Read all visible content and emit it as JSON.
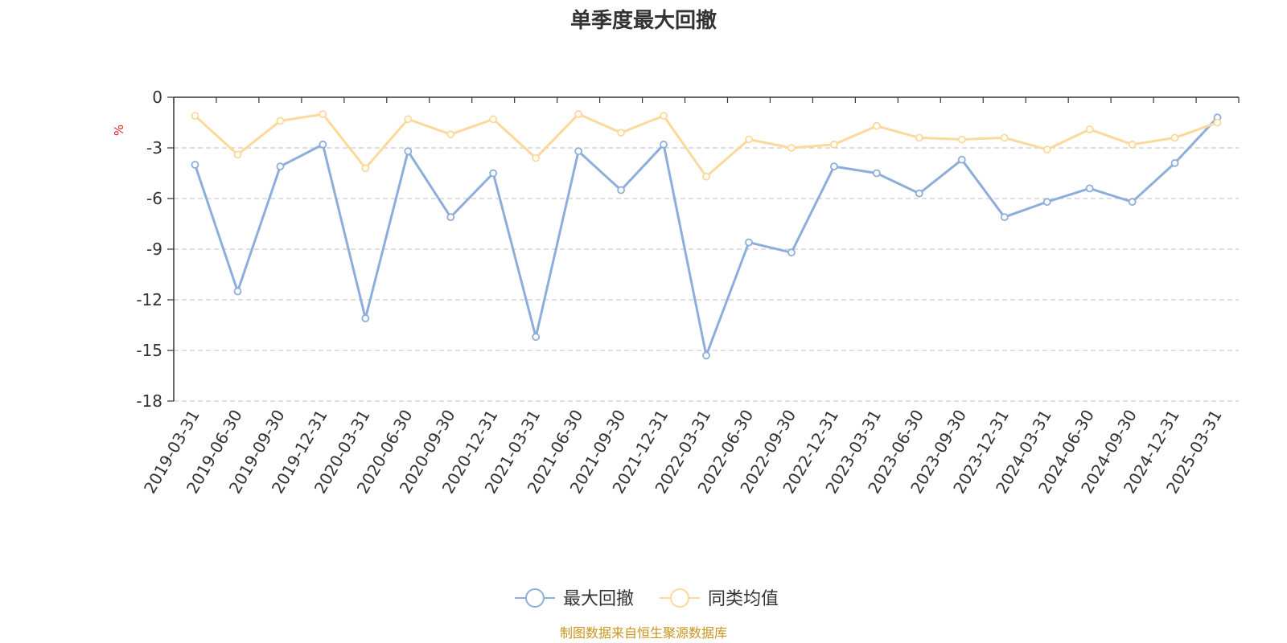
{
  "colors": {
    "series_main": "#8daedb",
    "series_peer": "#fcd99a",
    "grid": "#cccccc",
    "axis": "#333333",
    "unit": "#e02020",
    "source": "#c8941e"
  },
  "chart_data": {
    "type": "line",
    "title": "单季度最大回撤",
    "ylabel": "%",
    "xlabel": "",
    "ylim": [
      -18,
      0
    ],
    "yticks": [
      "0",
      "-3",
      "-6",
      "-9",
      "-12",
      "-15",
      "-18"
    ],
    "grid": true,
    "legend_position": "bottom-center",
    "categories": [
      "2019-03-31",
      "2019-06-30",
      "2019-09-30",
      "2019-12-31",
      "2020-03-31",
      "2020-06-30",
      "2020-09-30",
      "2020-12-31",
      "2021-03-31",
      "2021-06-30",
      "2021-09-30",
      "2021-12-31",
      "2022-03-31",
      "2022-06-30",
      "2022-09-30",
      "2022-12-31",
      "2023-03-31",
      "2023-06-30",
      "2023-09-30",
      "2023-12-31",
      "2024-03-31",
      "2024-06-30",
      "2024-09-30",
      "2024-12-31",
      "2025-03-31"
    ],
    "series": [
      {
        "name": "最大回撤",
        "color": "#8daedb",
        "values": [
          -4.0,
          -11.5,
          -4.1,
          -2.8,
          -13.1,
          -3.2,
          -7.1,
          -4.5,
          -14.2,
          -3.2,
          -5.5,
          -2.8,
          -15.3,
          -8.6,
          -9.2,
          -4.1,
          -4.5,
          -5.7,
          -3.7,
          -7.1,
          -6.2,
          -5.4,
          -6.2,
          -3.9,
          -1.2
        ]
      },
      {
        "name": "同类均值",
        "color": "#fcd99a",
        "values": [
          -1.1,
          -3.4,
          -1.4,
          -1.0,
          -4.2,
          -1.3,
          -2.2,
          -1.3,
          -3.6,
          -1.0,
          -2.1,
          -1.1,
          -4.7,
          -2.5,
          -3.0,
          -2.8,
          -1.7,
          -2.4,
          -2.5,
          -2.4,
          -3.1,
          -1.9,
          -2.8,
          -2.4,
          -1.5
        ]
      }
    ]
  },
  "footer": {
    "source": "制图数据来自恒生聚源数据库"
  }
}
